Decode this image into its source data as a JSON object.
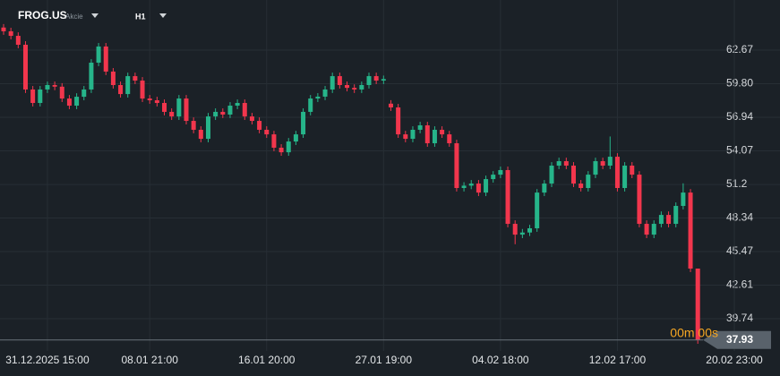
{
  "chart_data": {
    "type": "candlestick",
    "symbol": "FROG.US",
    "instrument_type": "Akcie",
    "timeframe": "H1",
    "countdown": "00m 00s",
    "categories": [
      null,
      null,
      null,
      null,
      null,
      null,
      "31.12.2025  15:00",
      null,
      null,
      null,
      null,
      null,
      null,
      null,
      null,
      null,
      null,
      null,
      null,
      null,
      "08.01  21:00",
      null,
      null,
      null,
      null,
      null,
      null,
      null,
      null,
      null,
      null,
      null,
      null,
      null,
      null,
      null,
      "16.01  20:00",
      null,
      null,
      null,
      null,
      null,
      null,
      null,
      null,
      null,
      null,
      null,
      null,
      null,
      null,
      null,
      "27.01  19:00",
      null,
      null,
      null,
      null,
      null,
      null,
      null,
      null,
      null,
      null,
      null,
      null,
      null,
      null,
      null,
      "04.02  18:00",
      null,
      null,
      null,
      null,
      null,
      null,
      null,
      null,
      null,
      null,
      null,
      null,
      null,
      null,
      null,
      "12.02  17:00",
      null,
      null,
      null,
      null,
      null,
      null,
      null,
      null,
      null,
      null,
      null,
      null,
      null,
      null,
      null,
      "20.02  23:00"
    ],
    "open": [
      64.6,
      64.28,
      63.89,
      63.13,
      59.31,
      58.16,
      59.31,
      59.69,
      59.55,
      58.54,
      57.93,
      58.69,
      59.31,
      61.6,
      62.98,
      60.84,
      59.69,
      58.92,
      60.45,
      60.07,
      58.54,
      58.39,
      58.16,
      57.4,
      57.01,
      58.54,
      56.63,
      55.87,
      55.1,
      57.01,
      57.4,
      57.17,
      57.93,
      58.16,
      57.01,
      56.63,
      55.87,
      55.48,
      54.34,
      53.95,
      54.87,
      55.48,
      57.4,
      58.54,
      58.7,
      59.31,
      60.45,
      59.69,
      59.45,
      59.31,
      59.69,
      60.45,
      60.07,
      58.1,
      57.78,
      55.48,
      55.1,
      55.87,
      56.25,
      54.72,
      55.87,
      55.48,
      54.72,
      50.9,
      51.1,
      51.28,
      50.51,
      51.66,
      52.04,
      52.43,
      47.84,
      46.92,
      47.1,
      47.46,
      50.51,
      51.28,
      52.81,
      53.19,
      52.81,
      51.28,
      50.9,
      52.04,
      53.19,
      52.81,
      53.57,
      50.9,
      52.81,
      52.04,
      47.84,
      46.92,
      47.84,
      48.6,
      47.84,
      49.37,
      50.51,
      44.02,
      null,
      null,
      null,
      null,
      null
    ],
    "high": [
      64.9,
      64.58,
      64.19,
      63.43,
      59.61,
      59.61,
      59.99,
      59.99,
      59.85,
      58.84,
      58.99,
      59.61,
      61.9,
      63.28,
      63.28,
      61.14,
      59.99,
      60.75,
      60.75,
      60.37,
      58.84,
      58.69,
      58.46,
      57.7,
      58.84,
      58.84,
      56.93,
      56.17,
      57.31,
      57.7,
      57.7,
      58.23,
      58.46,
      58.46,
      57.31,
      56.93,
      56.17,
      55.78,
      54.64,
      55.17,
      55.78,
      57.7,
      58.84,
      59.0,
      59.61,
      60.75,
      60.75,
      59.99,
      59.75,
      59.99,
      60.75,
      60.75,
      60.5,
      58.4,
      58.08,
      55.78,
      56.17,
      56.55,
      56.55,
      56.17,
      56.17,
      55.78,
      55.02,
      51.4,
      51.58,
      51.58,
      51.96,
      52.34,
      52.73,
      52.73,
      48.14,
      47.4,
      47.76,
      50.81,
      51.58,
      53.11,
      53.49,
      53.49,
      53.11,
      51.58,
      52.34,
      53.49,
      53.49,
      55.3,
      53.87,
      53.11,
      53.11,
      52.34,
      48.14,
      48.14,
      48.9,
      48.9,
      49.67,
      51.3,
      50.81,
      44.02,
      null,
      null,
      null,
      null,
      null
    ],
    "low": [
      63.98,
      63.59,
      62.83,
      59.01,
      57.86,
      57.86,
      59.01,
      59.25,
      58.24,
      57.63,
      57.63,
      58.39,
      59.01,
      61.3,
      60.54,
      59.39,
      58.62,
      58.62,
      59.77,
      58.24,
      58.09,
      57.86,
      57.1,
      56.71,
      56.71,
      56.33,
      55.57,
      54.8,
      54.8,
      56.71,
      56.87,
      56.87,
      57.63,
      56.71,
      56.33,
      55.57,
      55.18,
      54.04,
      53.65,
      53.65,
      54.57,
      55.18,
      57.1,
      58.24,
      58.4,
      59.01,
      59.39,
      59.15,
      59.01,
      59.01,
      59.39,
      59.77,
      59.77,
      57.48,
      55.18,
      54.8,
      54.8,
      55.57,
      54.42,
      54.42,
      55.18,
      54.42,
      50.6,
      50.6,
      50.8,
      50.21,
      50.21,
      51.36,
      51.74,
      47.54,
      46.1,
      46.62,
      46.8,
      47.16,
      50.21,
      50.98,
      52.51,
      52.51,
      50.98,
      50.6,
      50.6,
      51.74,
      52.51,
      52.51,
      50.6,
      50.6,
      51.74,
      47.54,
      46.62,
      46.62,
      47.54,
      47.54,
      47.54,
      49.07,
      43.72,
      37.6,
      null,
      null,
      null,
      null,
      null
    ],
    "close": [
      64.28,
      63.89,
      63.13,
      59.31,
      58.16,
      59.31,
      59.69,
      59.55,
      58.54,
      57.93,
      58.69,
      59.31,
      61.6,
      62.98,
      60.84,
      59.69,
      58.92,
      60.45,
      60.07,
      58.54,
      58.39,
      58.16,
      57.4,
      57.01,
      58.54,
      56.63,
      55.87,
      55.1,
      57.01,
      57.4,
      57.17,
      57.93,
      58.16,
      57.01,
      56.63,
      55.87,
      55.48,
      54.34,
      53.95,
      54.87,
      55.48,
      57.4,
      58.54,
      58.7,
      59.31,
      60.45,
      59.69,
      59.45,
      59.31,
      59.69,
      60.45,
      60.07,
      60.2,
      57.78,
      55.48,
      55.1,
      55.87,
      56.25,
      54.72,
      55.87,
      55.48,
      54.72,
      50.9,
      51.1,
      51.28,
      50.51,
      51.66,
      52.04,
      52.43,
      47.84,
      46.92,
      47.1,
      47.46,
      50.51,
      51.28,
      52.81,
      53.19,
      52.81,
      51.28,
      50.9,
      52.04,
      53.19,
      52.81,
      53.57,
      50.9,
      52.81,
      52.04,
      47.84,
      46.92,
      47.84,
      48.6,
      47.84,
      49.37,
      50.51,
      44.02,
      37.93,
      null,
      null,
      null,
      null,
      null
    ],
    "up_color": "#26b58a",
    "down_color": "#f2364d",
    "countdown_color": "#f5a623",
    "ylim": [
      36.99,
      66.95
    ],
    "yticks": [
      39.74,
      42.61,
      45.47,
      48.34,
      51.2,
      {
        "value": 54.07,
        "label": "54.07"
      },
      56.94,
      {
        "value": 59.8,
        "label": "59.80"
      },
      62.67
    ],
    "grid": true
  }
}
